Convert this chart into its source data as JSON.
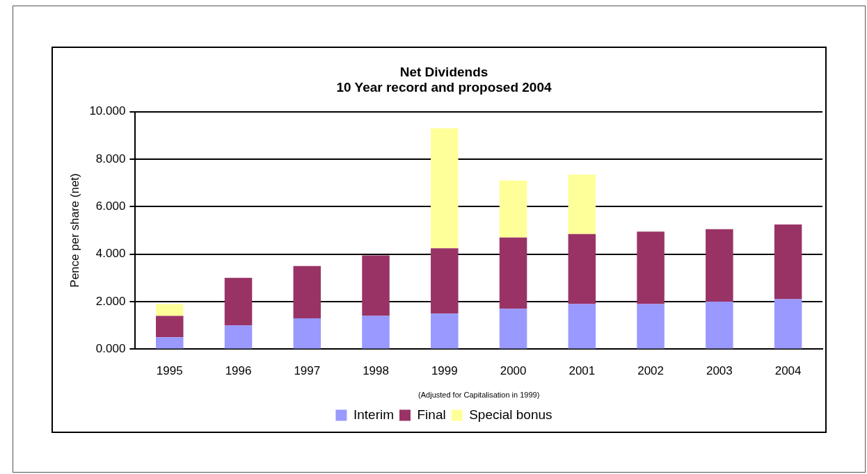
{
  "chart_data": {
    "type": "bar",
    "title": [
      "Net Dividends",
      "10 Year record and proposed 2004"
    ],
    "xlabel": "(Adjusted for Capitalisation in 1999)",
    "ylabel": "Pence per share (net)",
    "categories": [
      "1995",
      "1996",
      "1997",
      "1998",
      "1999",
      "2000",
      "2001",
      "2002",
      "2003",
      "2004"
    ],
    "stacked": true,
    "ylim": [
      0,
      10
    ],
    "yticks": [
      {
        "value": 0,
        "label": "0.000"
      },
      {
        "value": 2,
        "label": "2.000"
      },
      {
        "value": 4,
        "label": "4.000"
      },
      {
        "value": 6,
        "label": "6.000"
      },
      {
        "value": 8,
        "label": "8.000"
      },
      {
        "value": 10,
        "label": "10.000"
      }
    ],
    "grid": "y",
    "legend": "bottom",
    "series": [
      {
        "name": "Interim",
        "color": "#9999ff",
        "values": [
          0.5,
          1.0,
          1.3,
          1.4,
          1.5,
          1.7,
          1.9,
          1.9,
          2.0,
          2.1
        ]
      },
      {
        "name": "Final",
        "color": "#993366",
        "values": [
          0.9,
          2.0,
          2.2,
          2.55,
          2.75,
          3.0,
          2.95,
          3.05,
          3.05,
          3.15
        ]
      },
      {
        "name": "Special bonus",
        "color": "#ffff99",
        "values": [
          0.5,
          null,
          null,
          null,
          5.05,
          2.4,
          2.5,
          null,
          null,
          null
        ]
      }
    ]
  }
}
